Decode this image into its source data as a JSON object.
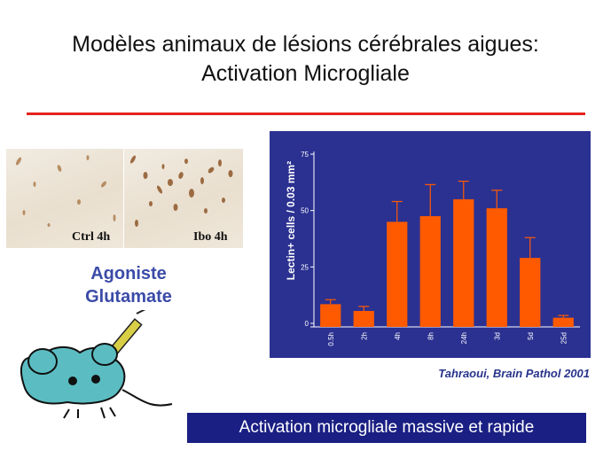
{
  "title": {
    "line1": "Modèles animaux de lésions cérébrales aigues:",
    "line2": "Activation Microgliale"
  },
  "images": [
    {
      "label": "Ctrl 4h"
    },
    {
      "label": "Ibo 4h"
    }
  ],
  "agonist": {
    "line1": "Agoniste",
    "line2": "Glutamate"
  },
  "chart_data": {
    "type": "bar",
    "categories": [
      "0.5h",
      "2h",
      "4h",
      "8h",
      "24h",
      "3d",
      "5d",
      "25d"
    ],
    "values": [
      8.5,
      5.5,
      45,
      47.5,
      55,
      51,
      29,
      2.5
    ],
    "errors": [
      2,
      2,
      9,
      14,
      8,
      8,
      9,
      1
    ],
    "title": "",
    "xlabel": "",
    "ylabel": "Lectin+ cells / 0.03 mm²",
    "ylim": [
      0,
      75
    ],
    "yticks": [
      0,
      25,
      50,
      75
    ],
    "grid": false,
    "background_color": "#2b3191",
    "bar_color": "#ff5a00",
    "axis_color": "#ffffff"
  },
  "citation": "Tahraoui, Brain Pathol 2001",
  "banner": "Activation microgliale massive et rapide",
  "colors": {
    "accent_line": "#e3221c",
    "agonist_text": "#3b4ba8",
    "banner_bg": "#1a1f83",
    "mouse_fill": "#5bbdc2"
  }
}
